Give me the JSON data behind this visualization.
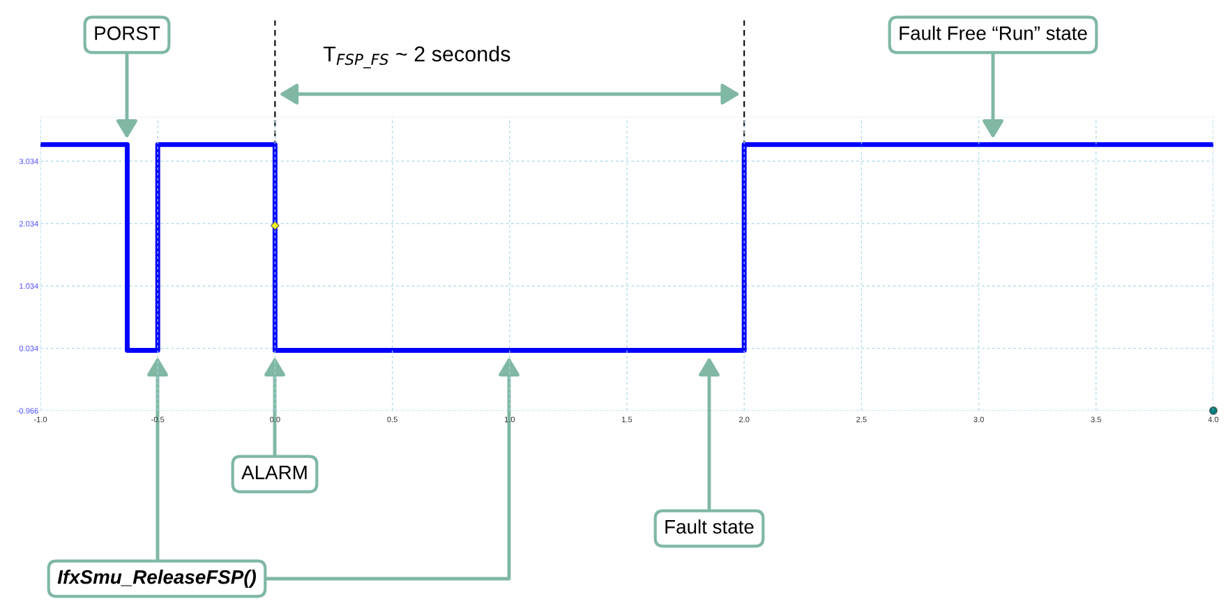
{
  "chart_data": {
    "type": "step",
    "series": [
      {
        "color": "#0000ff",
        "x": [
          -1.0,
          -0.63,
          -0.5,
          0.0,
          2.0,
          4.0
        ],
        "values": [
          3.3,
          0.0,
          3.3,
          0.0,
          3.3,
          3.3
        ]
      },
      {
        "type": "scatter",
        "marker": "diamond",
        "color": "#ffff00",
        "x": [
          0.0
        ],
        "values": [
          2.0
        ]
      },
      {
        "type": "scatter",
        "marker": "circle",
        "color": "#007b7b",
        "x": [
          4.0
        ],
        "values": [
          -0.966
        ]
      }
    ],
    "xlim": [
      -1.0,
      4.0
    ],
    "xticks": [
      {
        "value": -1.0,
        "label": "-1.0"
      },
      -0.5,
      {
        "value": 0.0,
        "label": "0.0"
      },
      0.5,
      {
        "value": 1.0,
        "label": "1.0"
      },
      1.5,
      {
        "value": 2.0,
        "label": "2.0"
      },
      2.5,
      {
        "value": 3.0,
        "label": "3.0"
      },
      3.5,
      {
        "value": 4.0,
        "label": "4.0"
      }
    ],
    "ylim": [
      -0.966,
      3.74
    ],
    "yticks": [
      -0.966,
      0.034,
      1.034,
      2.034,
      3.034
    ],
    "grid": true,
    "ref_lines": [
      {
        "axis": "x",
        "value": 0.0,
        "color": "#000000",
        "line_style": "dashed"
      },
      {
        "axis": "x",
        "value": 2.0,
        "color": "#000000",
        "line_style": "dashed"
      }
    ],
    "annotations": [
      "PORST",
      "Fault Free “Run” state",
      "ALARM",
      "Fault state",
      "IfxSmu_ReleaseFSP()",
      "T$_{FSP_FS}$ ~ 2 seconds"
    ]
  }
}
